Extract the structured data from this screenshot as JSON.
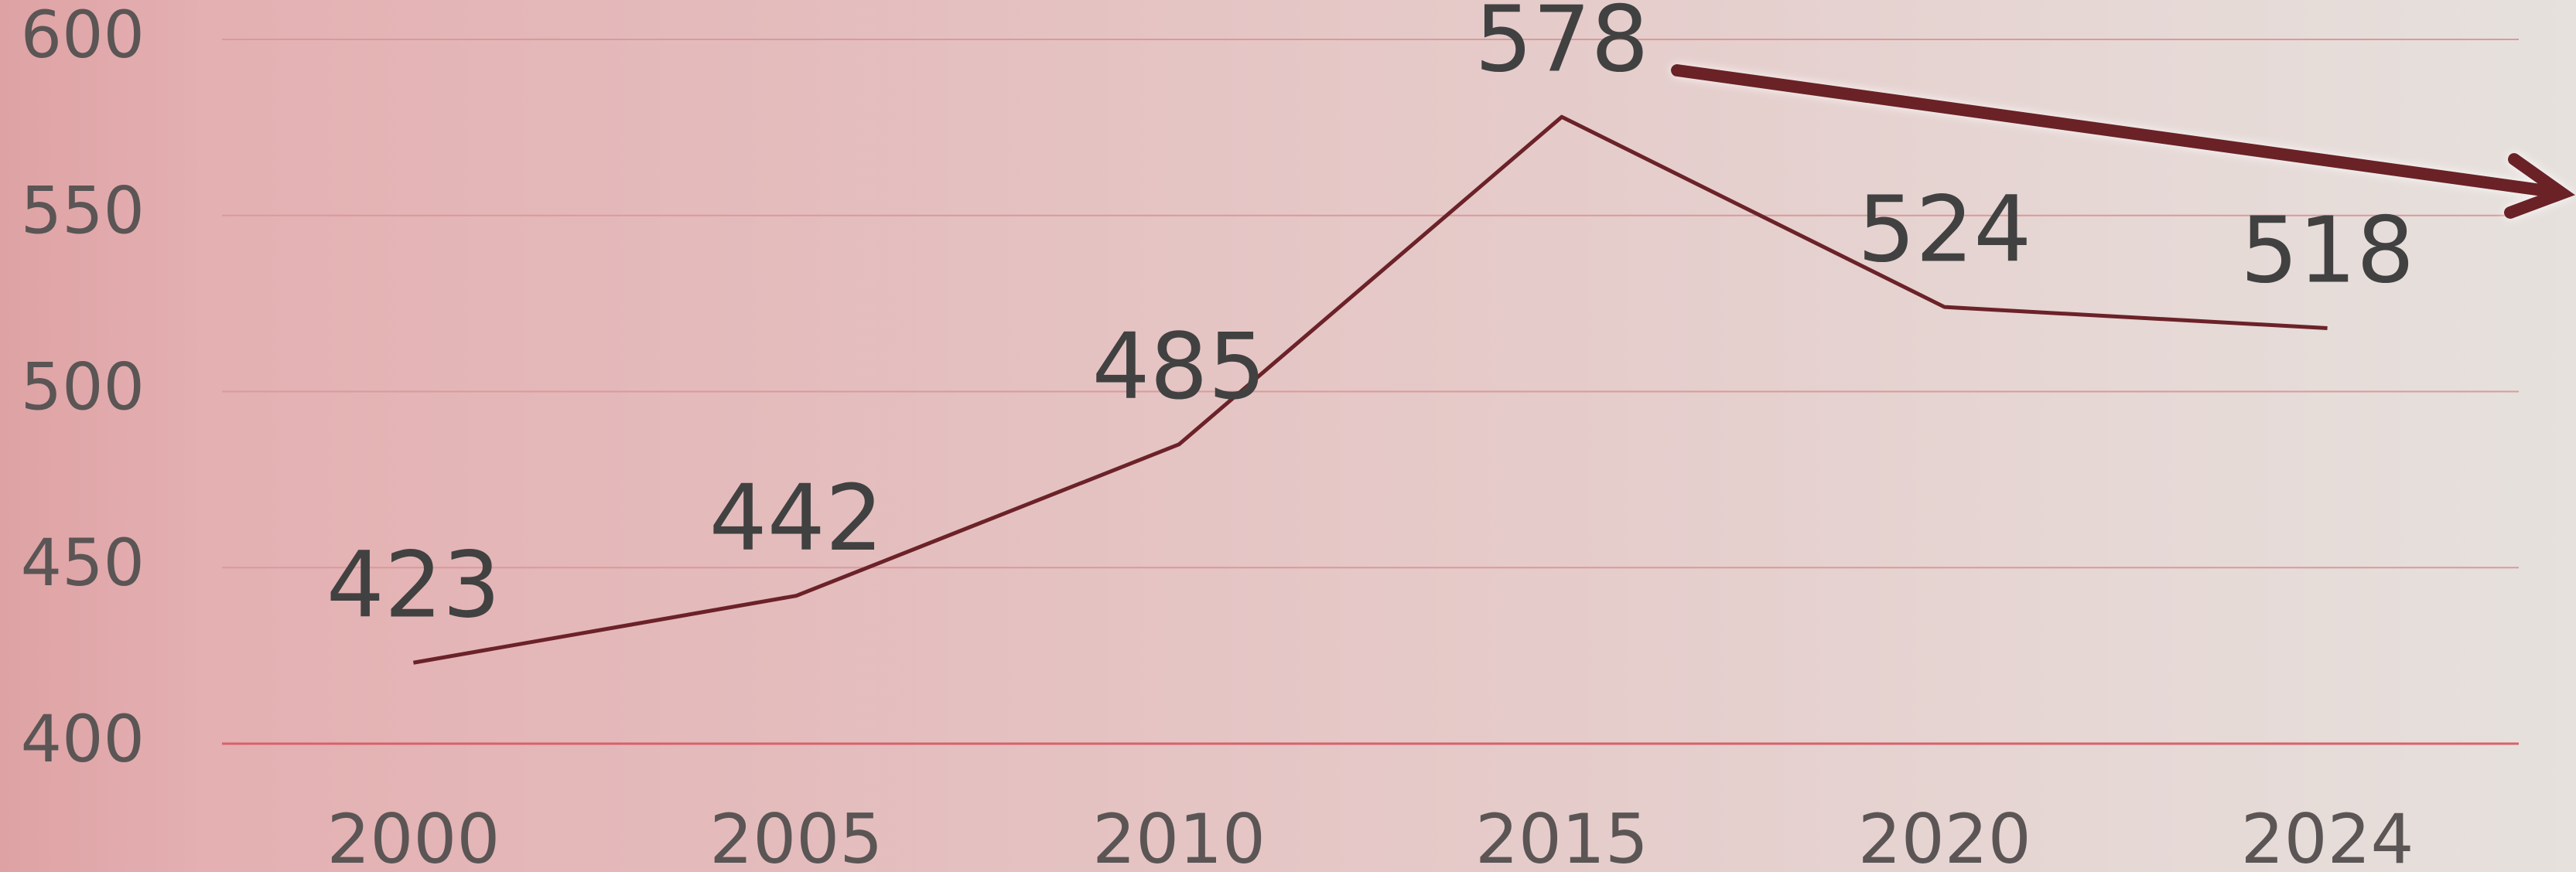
{
  "chart_data": {
    "type": "line",
    "categories": [
      "2000",
      "2005",
      "2010",
      "2015",
      "2020",
      "2024"
    ],
    "series": [
      {
        "color": "#6b2228",
        "values": [
          423,
          442,
          485,
          578,
          524,
          518
        ]
      }
    ],
    "ylim": [
      400,
      600
    ],
    "yticks": [
      400,
      450,
      500,
      550,
      600
    ],
    "grid": true
  }
}
